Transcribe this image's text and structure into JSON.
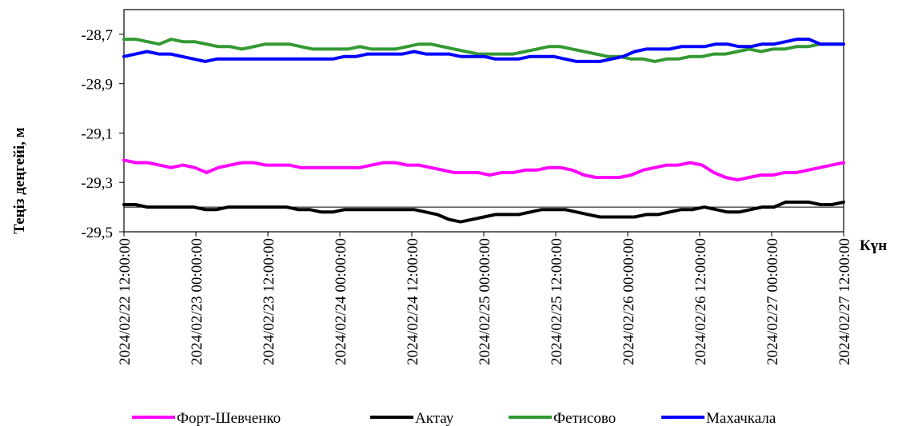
{
  "chart_data": {
    "type": "line",
    "ylabel": "Теңіз деңгейі, м",
    "xlabel": "Күн",
    "ylim": [
      -29.5,
      -28.6
    ],
    "y_ticks": [
      -28.7,
      -28.9,
      -29.1,
      -29.3,
      -29.5
    ],
    "y_tick_labels": [
      "-28,7",
      "-28,9",
      "-29,1",
      "-29,3",
      "-29,5"
    ],
    "x_range_hours": [
      0,
      120
    ],
    "x_tick_labels": [
      "2024/02/22 12:00:00",
      "2024/02/23 00:00:00",
      "2024/02/23 12:00:00",
      "2024/02/24 00:00:00",
      "2024/02/24 12:00:00",
      "2024/02/25 00:00:00",
      "2024/02/25 12:00:00",
      "2024/02/26 00:00:00",
      "2024/02/26 12:00:00",
      "2024/02/27 00:00:00",
      "2024/02/27 12:00:00"
    ],
    "reference_line_y": -29.4,
    "grid": false,
    "legend_position": "bottom",
    "series": [
      {
        "name": "Форт-Шевченко",
        "color": "#ff00ff",
        "values": [
          -29.21,
          -29.22,
          -29.22,
          -29.23,
          -29.24,
          -29.23,
          -29.24,
          -29.26,
          -29.24,
          -29.23,
          -29.22,
          -29.22,
          -29.23,
          -29.23,
          -29.23,
          -29.24,
          -29.24,
          -29.24,
          -29.24,
          -29.24,
          -29.24,
          -29.23,
          -29.22,
          -29.22,
          -29.23,
          -29.23,
          -29.24,
          -29.25,
          -29.26,
          -29.26,
          -29.26,
          -29.27,
          -29.26,
          -29.26,
          -29.25,
          -29.25,
          -29.24,
          -29.24,
          -29.25,
          -29.27,
          -29.28,
          -29.28,
          -29.28,
          -29.27,
          -29.25,
          -29.24,
          -29.23,
          -29.23,
          -29.22,
          -29.23,
          -29.26,
          -29.28,
          -29.29,
          -29.28,
          -29.27,
          -29.27,
          -29.26,
          -29.26,
          -29.25,
          -29.24,
          -29.23,
          -29.22
        ]
      },
      {
        "name": "Актау",
        "color": "#000000",
        "values": [
          -29.39,
          -29.39,
          -29.4,
          -29.4,
          -29.4,
          -29.4,
          -29.4,
          -29.41,
          -29.41,
          -29.4,
          -29.4,
          -29.4,
          -29.4,
          -29.4,
          -29.4,
          -29.41,
          -29.41,
          -29.42,
          -29.42,
          -29.41,
          -29.41,
          -29.41,
          -29.41,
          -29.41,
          -29.41,
          -29.41,
          -29.42,
          -29.43,
          -29.45,
          -29.46,
          -29.45,
          -29.44,
          -29.43,
          -29.43,
          -29.43,
          -29.42,
          -29.41,
          -29.41,
          -29.41,
          -29.42,
          -29.43,
          -29.44,
          -29.44,
          -29.44,
          -29.44,
          -29.43,
          -29.43,
          -29.42,
          -29.41,
          -29.41,
          -29.4,
          -29.41,
          -29.42,
          -29.42,
          -29.41,
          -29.4,
          -29.4,
          -29.38,
          -29.38,
          -29.38,
          -29.39,
          -29.39,
          -29.38
        ]
      },
      {
        "name": "Фетисово",
        "color": "#339933",
        "values": [
          -28.72,
          -28.72,
          -28.73,
          -28.74,
          -28.72,
          -28.73,
          -28.73,
          -28.74,
          -28.75,
          -28.75,
          -28.76,
          -28.75,
          -28.74,
          -28.74,
          -28.74,
          -28.75,
          -28.76,
          -28.76,
          -28.76,
          -28.76,
          -28.75,
          -28.76,
          -28.76,
          -28.76,
          -28.75,
          -28.74,
          -28.74,
          -28.75,
          -28.76,
          -28.77,
          -28.78,
          -28.78,
          -28.78,
          -28.78,
          -28.77,
          -28.76,
          -28.75,
          -28.75,
          -28.76,
          -28.77,
          -28.78,
          -28.79,
          -28.79,
          -28.8,
          -28.8,
          -28.81,
          -28.8,
          -28.8,
          -28.79,
          -28.79,
          -28.78,
          -28.78,
          -28.77,
          -28.76,
          -28.77,
          -28.76,
          -28.76,
          -28.75,
          -28.75,
          -28.74,
          -28.74,
          -28.74
        ]
      },
      {
        "name": "Махачкала",
        "color": "#0000ff",
        "values": [
          -28.79,
          -28.78,
          -28.77,
          -28.78,
          -28.78,
          -28.79,
          -28.8,
          -28.81,
          -28.8,
          -28.8,
          -28.8,
          -28.8,
          -28.8,
          -28.8,
          -28.8,
          -28.8,
          -28.8,
          -28.8,
          -28.8,
          -28.79,
          -28.79,
          -28.78,
          -28.78,
          -28.78,
          -28.78,
          -28.77,
          -28.78,
          -28.78,
          -28.78,
          -28.79,
          -28.79,
          -28.79,
          -28.8,
          -28.8,
          -28.8,
          -28.79,
          -28.79,
          -28.79,
          -28.8,
          -28.81,
          -28.81,
          -28.81,
          -28.8,
          -28.79,
          -28.77,
          -28.76,
          -28.76,
          -28.76,
          -28.75,
          -28.75,
          -28.75,
          -28.74,
          -28.74,
          -28.75,
          -28.75,
          -28.74,
          -28.74,
          -28.73,
          -28.72,
          -28.72,
          -28.74,
          -28.74,
          -28.74
        ]
      }
    ]
  }
}
